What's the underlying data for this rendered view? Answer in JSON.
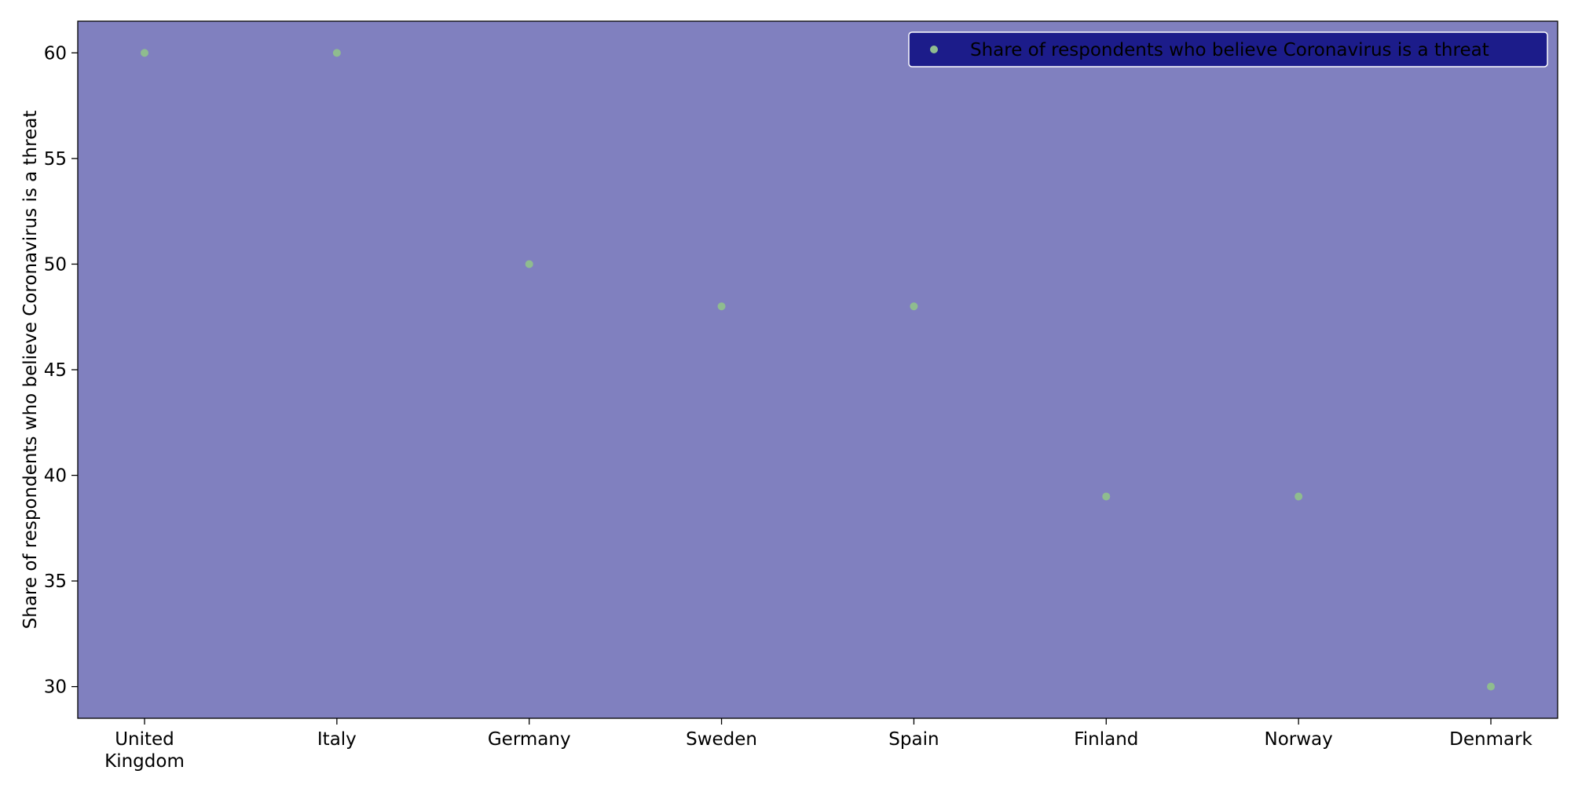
{
  "chart_data": {
    "type": "scatter",
    "title": "",
    "xlabel": "",
    "ylabel": "Share of respondents who believe Coronavirus is a threat",
    "categories": [
      [
        "United",
        "Kingdom"
      ],
      [
        "Italy"
      ],
      [
        "Germany"
      ],
      [
        "Sweden"
      ],
      [
        "Spain"
      ],
      [
        "Finland"
      ],
      [
        "Norway"
      ],
      [
        "Denmark"
      ]
    ],
    "series": [
      {
        "name": "Share of respondents who believe Coronavirus is a threat",
        "values": [
          60,
          60,
          50,
          48,
          48,
          39,
          39,
          30
        ]
      }
    ],
    "yticks": [
      30,
      35,
      40,
      45,
      50,
      55,
      60
    ],
    "ylim": [
      28.5,
      61.5
    ],
    "grid": false,
    "legend_position": "top-right",
    "colors": {
      "plot_background": "#8080bf",
      "marker": "#8fbc8f",
      "legend_background": "#1c1c8a",
      "legend_border": "#ffffff",
      "axis": "#000000"
    }
  }
}
